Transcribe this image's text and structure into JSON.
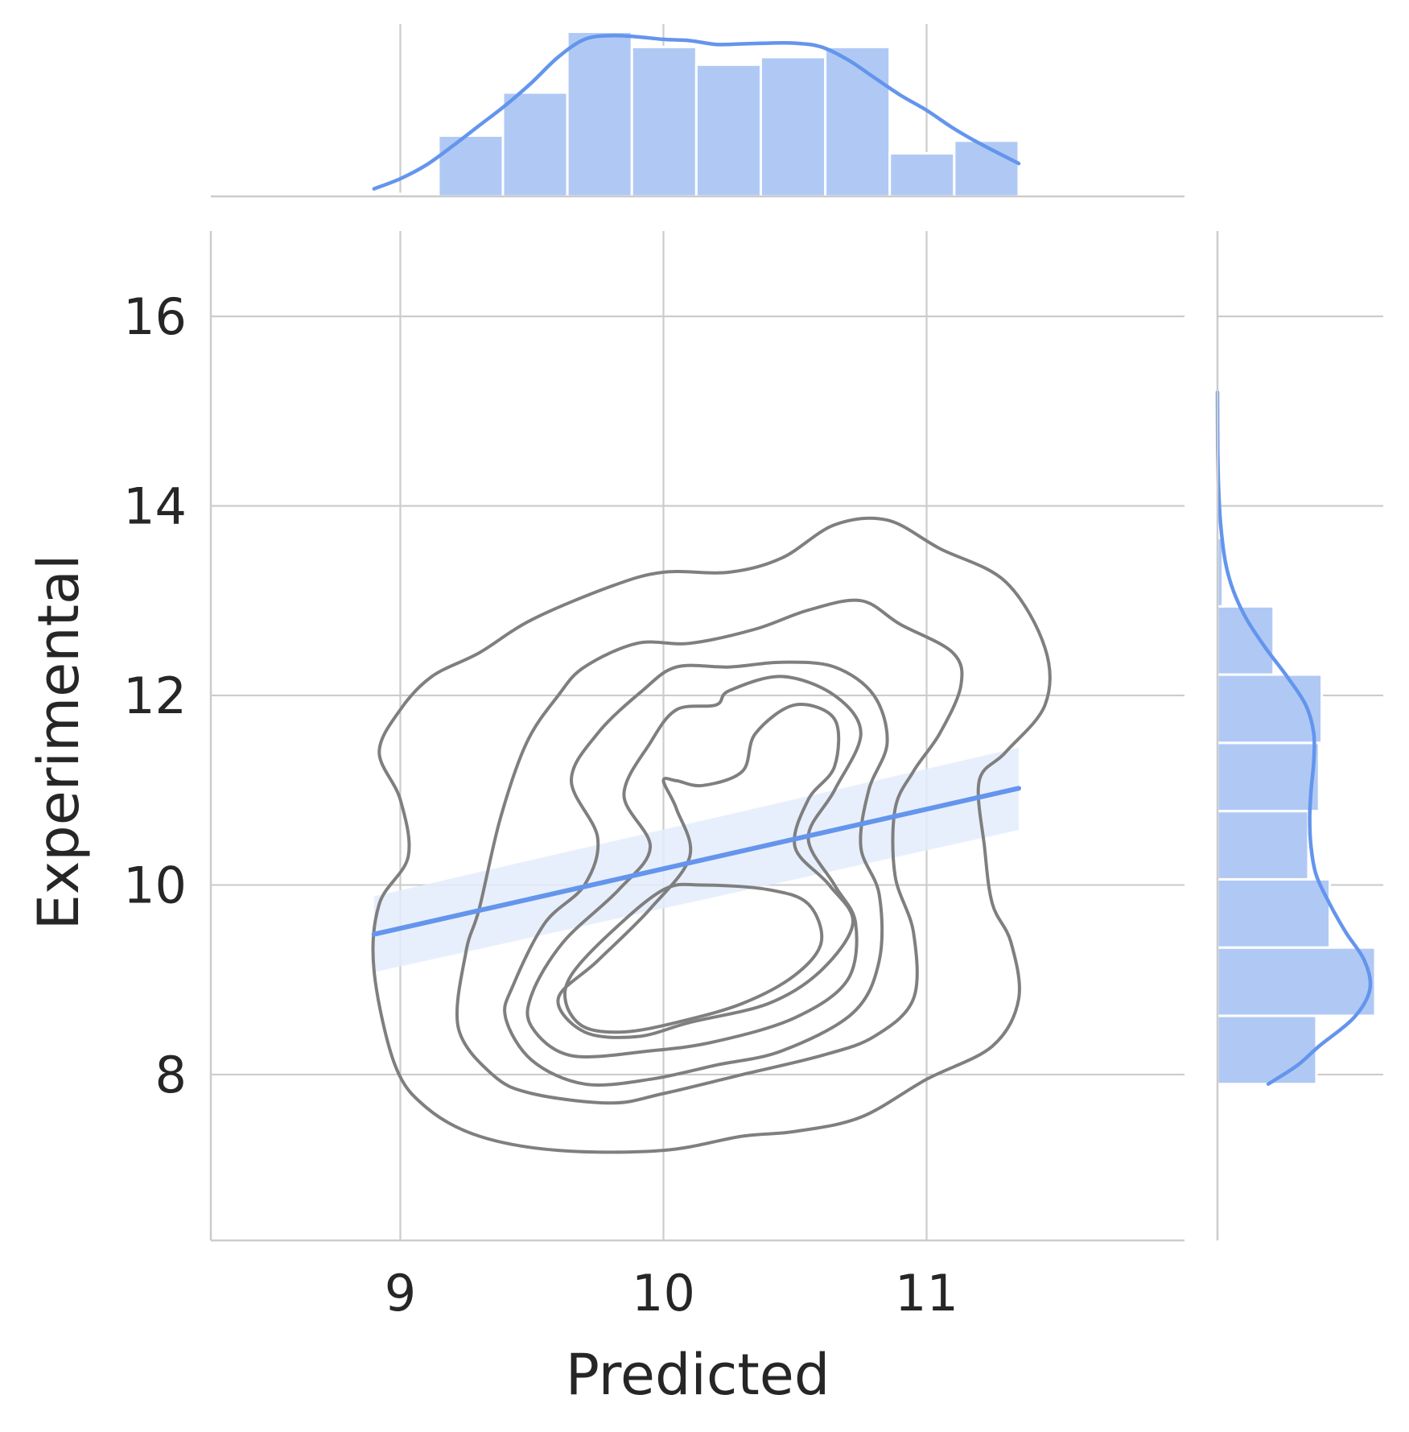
{
  "chart_data": {
    "type": "scatter",
    "xlabel": "Predicted",
    "ylabel": "Experimental",
    "xlim": [
      8.28,
      11.98
    ],
    "ylim": [
      6.25,
      16.9
    ],
    "x_ticks": [
      "9",
      "10",
      "11"
    ],
    "y_ticks": [
      "8",
      "10",
      "12",
      "14",
      "16"
    ],
    "grid": true,
    "colors": {
      "accent": "#6495ed",
      "hist": "#b0c9f4",
      "contour": "#7f7f7f",
      "grid": "#cccccc",
      "band": "#e4ecfc"
    },
    "regression": {
      "x": [
        8.9,
        11.35
      ],
      "y": [
        9.48,
        11.02
      ],
      "ci_lower": [
        9.08,
        10.58
      ],
      "ci_upper": [
        9.88,
        11.45
      ]
    },
    "top_histogram": {
      "bin_edges": [
        8.9,
        9.145,
        9.39,
        9.635,
        9.88,
        10.125,
        10.37,
        10.615,
        10.86,
        11.105,
        11.35
      ],
      "counts": [
        1,
        24,
        41,
        65,
        59,
        52,
        55,
        59,
        17,
        22
      ],
      "kde": [
        [
          8.9,
          3.0
        ],
        [
          9.0,
          7.0
        ],
        [
          9.1,
          12.5
        ],
        [
          9.2,
          20.0
        ],
        [
          9.3,
          28.0
        ],
        [
          9.4,
          36.0
        ],
        [
          9.5,
          45.0
        ],
        [
          9.6,
          55.0
        ],
        [
          9.7,
          62.0
        ],
        [
          9.8,
          63.5
        ],
        [
          9.9,
          63.0
        ],
        [
          10.0,
          62.0
        ],
        [
          10.1,
          61.5
        ],
        [
          10.2,
          60.0
        ],
        [
          10.3,
          60.2
        ],
        [
          10.4,
          60.5
        ],
        [
          10.5,
          60.5
        ],
        [
          10.6,
          59.0
        ],
        [
          10.7,
          54.0
        ],
        [
          10.8,
          47.0
        ],
        [
          10.9,
          40.0
        ],
        [
          11.0,
          34.0
        ],
        [
          11.1,
          27.0
        ],
        [
          11.2,
          21.0
        ],
        [
          11.35,
          13.0
        ]
      ]
    },
    "right_histogram": {
      "bin_edges": [
        7.9,
        8.62,
        9.34,
        10.06,
        10.78,
        11.5,
        12.22,
        12.94,
        13.66
      ],
      "counts": [
        37,
        59,
        42,
        34,
        38,
        39,
        21,
        2
      ],
      "kde": [
        [
          7.9,
          19.0
        ],
        [
          8.1,
          30.0
        ],
        [
          8.3,
          38.0
        ],
        [
          8.6,
          51.0
        ],
        [
          8.9,
          57.0
        ],
        [
          9.2,
          55.0
        ],
        [
          9.5,
          48.0
        ],
        [
          9.8,
          42.0
        ],
        [
          10.1,
          37.0
        ],
        [
          10.4,
          35.0
        ],
        [
          10.7,
          34.5
        ],
        [
          11.0,
          35.0
        ],
        [
          11.3,
          36.0
        ],
        [
          11.6,
          36.0
        ],
        [
          11.9,
          33.0
        ],
        [
          12.2,
          26.0
        ],
        [
          12.5,
          18.0
        ],
        [
          12.8,
          11.0
        ],
        [
          13.1,
          6.0
        ],
        [
          13.4,
          3.0
        ],
        [
          13.8,
          1.2
        ],
        [
          14.2,
          0.4
        ],
        [
          14.6,
          0.1
        ],
        [
          15.2,
          0.0
        ]
      ]
    },
    "kde_contours": [
      [
        [
          8.92,
          11.4
        ],
        [
          9.0,
          11.85
        ],
        [
          9.12,
          12.2
        ],
        [
          9.3,
          12.45
        ],
        [
          9.5,
          12.8
        ],
        [
          9.8,
          13.15
        ],
        [
          10.0,
          13.3
        ],
        [
          10.25,
          13.3
        ],
        [
          10.45,
          13.45
        ],
        [
          10.65,
          13.8
        ],
        [
          10.85,
          13.85
        ],
        [
          11.05,
          13.55
        ],
        [
          11.3,
          13.2
        ],
        [
          11.45,
          12.5
        ],
        [
          11.45,
          11.9
        ],
        [
          11.3,
          11.4
        ],
        [
          11.2,
          11.1
        ],
        [
          11.22,
          10.4
        ],
        [
          11.25,
          9.8
        ],
        [
          11.32,
          9.4
        ],
        [
          11.35,
          8.8
        ],
        [
          11.25,
          8.3
        ],
        [
          11.0,
          7.95
        ],
        [
          10.75,
          7.55
        ],
        [
          10.5,
          7.4
        ],
        [
          10.3,
          7.35
        ],
        [
          10.0,
          7.2
        ],
        [
          9.6,
          7.2
        ],
        [
          9.3,
          7.35
        ],
        [
          9.1,
          7.65
        ],
        [
          8.98,
          8.1
        ],
        [
          8.9,
          9.1
        ],
        [
          8.92,
          9.8
        ],
        [
          9.03,
          10.3
        ],
        [
          9.0,
          10.9
        ]
      ],
      [
        [
          9.3,
          9.75
        ],
        [
          9.38,
          10.7
        ],
        [
          9.48,
          11.5
        ],
        [
          9.6,
          12.0
        ],
        [
          9.7,
          12.3
        ],
        [
          9.9,
          12.55
        ],
        [
          10.1,
          12.55
        ],
        [
          10.35,
          12.7
        ],
        [
          10.55,
          12.9
        ],
        [
          10.75,
          13.0
        ],
        [
          10.9,
          12.75
        ],
        [
          11.1,
          12.45
        ],
        [
          11.13,
          12.1
        ],
        [
          11.05,
          11.6
        ],
        [
          10.95,
          11.2
        ],
        [
          10.88,
          10.8
        ],
        [
          10.88,
          10.1
        ],
        [
          10.95,
          9.5
        ],
        [
          10.95,
          8.8
        ],
        [
          10.8,
          8.4
        ],
        [
          10.6,
          8.2
        ],
        [
          10.3,
          8.0
        ],
        [
          10.0,
          7.8
        ],
        [
          9.8,
          7.7
        ],
        [
          9.5,
          7.8
        ],
        [
          9.35,
          8.0
        ],
        [
          9.22,
          8.5
        ],
        [
          9.25,
          9.3
        ]
      ],
      [
        [
          9.43,
          8.95
        ],
        [
          9.55,
          9.6
        ],
        [
          9.7,
          10.0
        ],
        [
          9.75,
          10.5
        ],
        [
          9.65,
          11.1
        ],
        [
          9.75,
          11.6
        ],
        [
          9.92,
          12.05
        ],
        [
          10.05,
          12.3
        ],
        [
          10.25,
          12.3
        ],
        [
          10.45,
          12.35
        ],
        [
          10.65,
          12.3
        ],
        [
          10.8,
          12.0
        ],
        [
          10.85,
          11.5
        ],
        [
          10.78,
          11.0
        ],
        [
          10.75,
          10.4
        ],
        [
          10.82,
          9.9
        ],
        [
          10.82,
          9.2
        ],
        [
          10.72,
          8.65
        ],
        [
          10.45,
          8.25
        ],
        [
          10.2,
          8.1
        ],
        [
          9.95,
          7.95
        ],
        [
          9.7,
          7.9
        ],
        [
          9.5,
          8.15
        ],
        [
          9.4,
          8.6
        ]
      ],
      [
        [
          9.5,
          8.85
        ],
        [
          9.62,
          9.4
        ],
        [
          9.83,
          9.95
        ],
        [
          9.95,
          10.4
        ],
        [
          9.85,
          10.95
        ],
        [
          9.95,
          11.5
        ],
        [
          10.05,
          11.85
        ],
        [
          10.2,
          11.9
        ],
        [
          10.25,
          12.05
        ],
        [
          10.45,
          12.2
        ],
        [
          10.65,
          12.0
        ],
        [
          10.75,
          11.6
        ],
        [
          10.65,
          11.0
        ],
        [
          10.55,
          10.5
        ],
        [
          10.65,
          10.0
        ],
        [
          10.73,
          9.6
        ],
        [
          10.7,
          9.0
        ],
        [
          10.5,
          8.6
        ],
        [
          10.2,
          8.35
        ],
        [
          9.95,
          8.25
        ],
        [
          9.65,
          8.2
        ],
        [
          9.5,
          8.5
        ]
      ],
      [
        [
          9.6,
          8.8
        ],
        [
          9.75,
          9.2
        ],
        [
          9.95,
          9.75
        ],
        [
          10.1,
          10.3
        ],
        [
          10.05,
          10.8
        ],
        [
          10.0,
          11.1
        ],
        [
          10.05,
          11.1
        ],
        [
          10.15,
          11.05
        ],
        [
          10.3,
          11.2
        ],
        [
          10.35,
          11.6
        ],
        [
          10.5,
          11.9
        ],
        [
          10.65,
          11.75
        ],
        [
          10.65,
          11.25
        ],
        [
          10.55,
          10.9
        ],
        [
          10.5,
          10.4
        ],
        [
          10.63,
          10.0
        ],
        [
          10.72,
          9.6
        ],
        [
          10.6,
          9.1
        ],
        [
          10.4,
          8.75
        ],
        [
          10.1,
          8.55
        ],
        [
          9.9,
          8.4
        ],
        [
          9.7,
          8.45
        ]
      ],
      [
        [
          9.65,
          9.05
        ],
        [
          9.8,
          9.5
        ],
        [
          10.0,
          9.95
        ],
        [
          10.15,
          10.0
        ],
        [
          10.4,
          9.95
        ],
        [
          10.55,
          9.8
        ],
        [
          10.6,
          9.4
        ],
        [
          10.5,
          9.05
        ],
        [
          10.3,
          8.75
        ],
        [
          10.05,
          8.55
        ],
        [
          9.85,
          8.45
        ],
        [
          9.7,
          8.5
        ],
        [
          9.63,
          8.75
        ]
      ]
    ]
  }
}
